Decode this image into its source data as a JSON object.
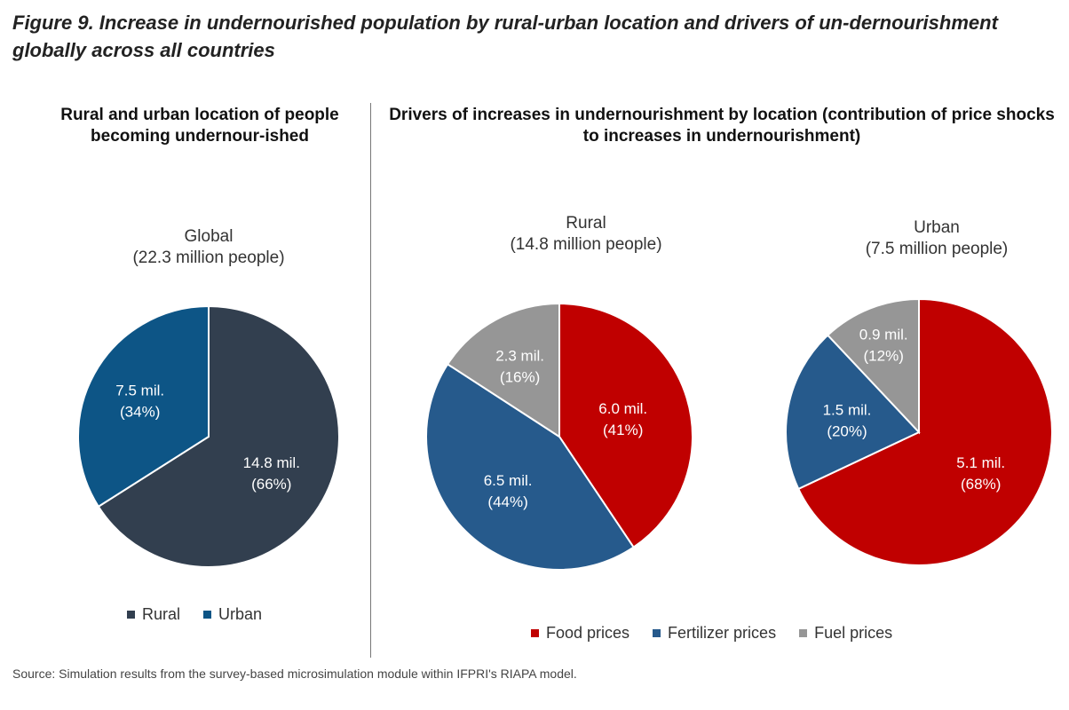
{
  "figure_title": "Figure 9. Increase in undernourished population by rural-urban location and drivers of un-dernourishment globally across all countries",
  "left_panel_title": "Rural and urban location of people becoming undernour-ished",
  "right_panel_title": "Drivers of increases in undernourishment by location (contribution of price shocks to increases in undernourishment)",
  "source": "Source: Simulation results from the survey-based microsimulation module within IFPRI's RIAPA model.",
  "colors": {
    "rural_dark": "#323f4f",
    "urban_blue": "#0d5586",
    "food": "#c00000",
    "fertilizer": "#265a8c",
    "fuel": "#969696"
  },
  "legends": {
    "left": [
      {
        "label": "Rural",
        "color": "#323f4f"
      },
      {
        "label": "Urban",
        "color": "#0d5586"
      }
    ],
    "right": [
      {
        "label": "Food prices",
        "color": "#c00000"
      },
      {
        "label": "Fertilizer prices",
        "color": "#265a8c"
      },
      {
        "label": "Fuel prices",
        "color": "#969696"
      }
    ]
  },
  "chart_data": [
    {
      "type": "pie",
      "title": "Global",
      "subtitle": "(22.3 million people)",
      "slices": [
        {
          "category": "Rural",
          "value": 14.8,
          "percent": 66,
          "label_line1": "14.8 mil.",
          "label_line2": "(66%)",
          "color": "#323f4f"
        },
        {
          "category": "Urban",
          "value": 7.5,
          "percent": 34,
          "label_line1": "7.5 mil.",
          "label_line2": "(34%)",
          "color": "#0d5586"
        }
      ]
    },
    {
      "type": "pie",
      "title": "Rural",
      "subtitle": "(14.8 million people)",
      "slices": [
        {
          "category": "Food prices",
          "value": 6.0,
          "percent": 41,
          "label_line1": "6.0 mil.",
          "label_line2": "(41%)",
          "color": "#c00000"
        },
        {
          "category": "Fertilizer prices",
          "value": 6.5,
          "percent": 44,
          "label_line1": "6.5 mil.",
          "label_line2": "(44%)",
          "color": "#265a8c"
        },
        {
          "category": "Fuel prices",
          "value": 2.3,
          "percent": 16,
          "label_line1": "2.3 mil.",
          "label_line2": "(16%)",
          "color": "#969696"
        }
      ]
    },
    {
      "type": "pie",
      "title": "Urban",
      "subtitle": "(7.5 million people)",
      "slices": [
        {
          "category": "Food prices",
          "value": 5.1,
          "percent": 68,
          "label_line1": "5.1 mil.",
          "label_line2": "(68%)",
          "color": "#c00000"
        },
        {
          "category": "Fertilizer prices",
          "value": 1.5,
          "percent": 20,
          "label_line1": "1.5 mil.",
          "label_line2": "(20%)",
          "color": "#265a8c"
        },
        {
          "category": "Fuel prices",
          "value": 0.9,
          "percent": 12,
          "label_line1": "0.9 mil.",
          "label_line2": "(12%)",
          "color": "#969696"
        }
      ]
    }
  ]
}
